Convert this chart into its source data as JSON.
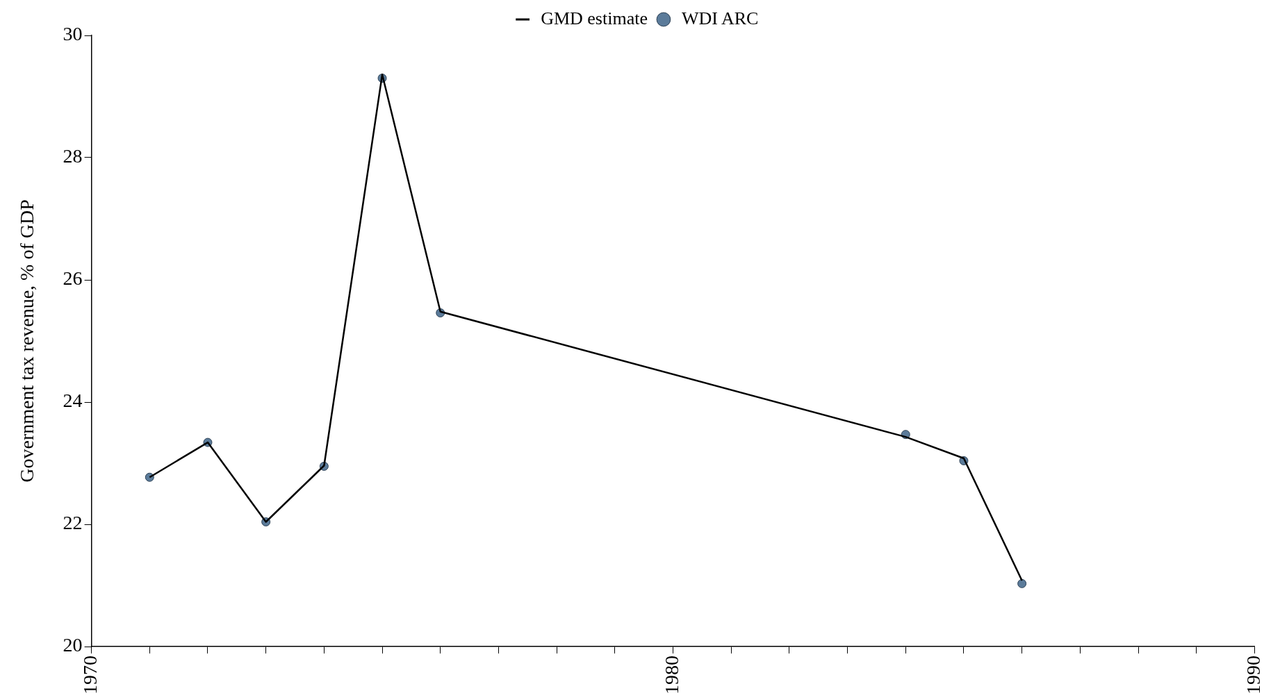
{
  "chart_data": {
    "type": "line",
    "ylabel": "Government tax revenue, % of GDP",
    "xlim": [
      1970,
      1990
    ],
    "xticks": [
      1970,
      {
        "value": 1971,
        "label": null
      },
      {
        "value": 1972,
        "label": null
      },
      {
        "value": 1973,
        "label": null
      },
      {
        "value": 1974,
        "label": null
      },
      {
        "value": 1975,
        "label": null
      },
      {
        "value": 1976,
        "label": null
      },
      {
        "value": 1977,
        "label": null
      },
      {
        "value": 1978,
        "label": null
      },
      {
        "value": 1979,
        "label": null
      },
      1980,
      {
        "value": 1981,
        "label": null
      },
      {
        "value": 1982,
        "label": null
      },
      {
        "value": 1983,
        "label": null
      },
      {
        "value": 1984,
        "label": null
      },
      {
        "value": 1985,
        "label": null
      },
      {
        "value": 1986,
        "label": null
      },
      {
        "value": 1987,
        "label": null
      },
      {
        "value": 1988,
        "label": null
      },
      {
        "value": 1989,
        "label": null
      },
      1990
    ],
    "ylim": [
      20,
      30
    ],
    "yticks": [
      20,
      22,
      24,
      26,
      28,
      30
    ],
    "grid": false,
    "legend": "top",
    "series": [
      {
        "name": "GMD estimate",
        "type": "line",
        "color": "#000000",
        "marker": "none",
        "line_style": "solid",
        "x": [
          1971,
          1972,
          1973,
          1974,
          1975,
          1976,
          1984,
          1985,
          1986
        ],
        "values": [
          22.77,
          23.34,
          22.04,
          22.96,
          29.36,
          25.48,
          23.43,
          23.08,
          21.08
        ]
      },
      {
        "name": "WDI ARC",
        "type": "scatter",
        "color": "#5b7b9a",
        "marker": "circle",
        "x": [
          1971,
          1972,
          1973,
          1974,
          1975,
          1976,
          1984,
          1985,
          1986
        ],
        "values": [
          22.77,
          23.34,
          22.04,
          22.95,
          29.3,
          25.46,
          23.47,
          23.04,
          21.03
        ]
      }
    ]
  }
}
